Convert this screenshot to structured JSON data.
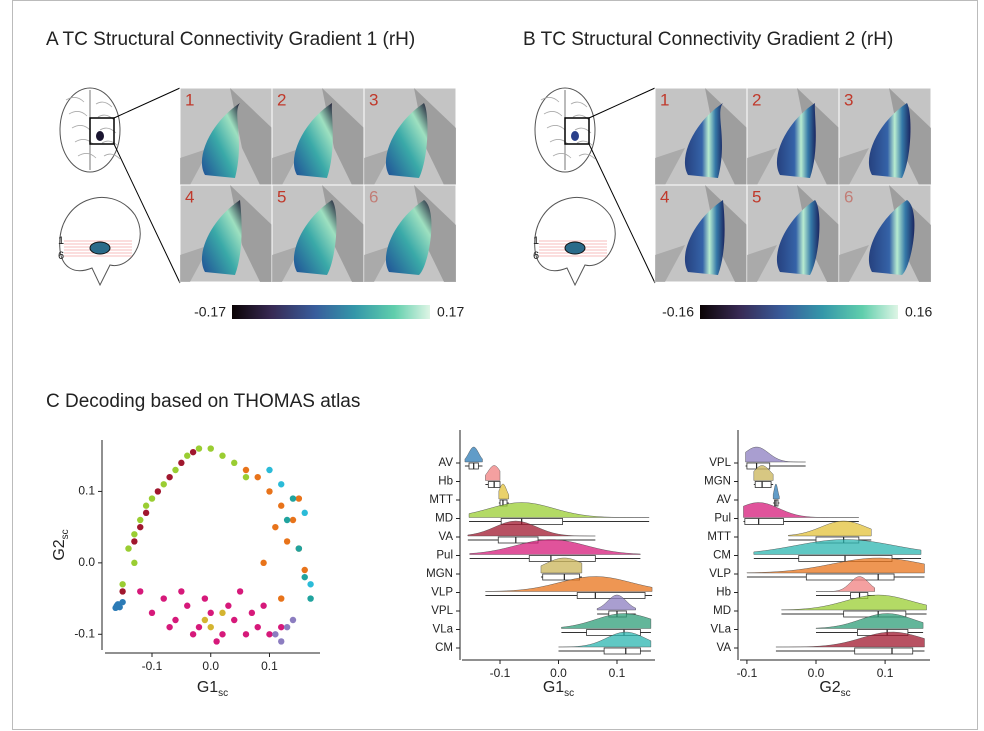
{
  "panel_a": {
    "title": "A TC Structural Connectivity Gradient 1 (rH)",
    "slice_labels": [
      "1",
      "2",
      "3",
      "4",
      "5",
      "6"
    ],
    "sagittal_labels": [
      "1",
      "6"
    ],
    "colorbar_min": -0.17,
    "colorbar_max": 0.17
  },
  "panel_b": {
    "title": "B TC Structural Connectivity Gradient 2 (rH)",
    "slice_labels": [
      "1",
      "2",
      "3",
      "4",
      "5",
      "6"
    ],
    "sagittal_labels": [
      "1",
      "6"
    ],
    "colorbar_min": -0.16,
    "colorbar_max": 0.16
  },
  "panel_c": {
    "title": "C  Decoding based on THOMAS atlas"
  },
  "chart_data": [
    {
      "type": "scatter",
      "x_label": {
        "main": "G1",
        "sub": "sc"
      },
      "y_label": {
        "main": "G2",
        "sub": "sc"
      },
      "xlim": [
        -0.18,
        0.186
      ],
      "ylim": [
        -0.122,
        0.172
      ],
      "xticks": [
        -0.1,
        {
          "value": 0,
          "label": "0.0"
        },
        0.1
      ],
      "yticks": [
        -0.1,
        {
          "value": 0,
          "label": "0.0"
        },
        0.1
      ],
      "series": [
        {
          "color": "#9acd32",
          "x": [
            -0.14,
            -0.13,
            -0.12,
            -0.1,
            -0.08,
            -0.06,
            -0.04,
            -0.02,
            0,
            0.02,
            -0.15,
            -0.11,
            0.04,
            0.06,
            -0.13
          ],
          "y": [
            0.02,
            0.0,
            0.06,
            0.09,
            0.11,
            0.13,
            0.15,
            0.16,
            0.16,
            0.15,
            -0.03,
            0.08,
            0.14,
            0.12,
            0.04
          ]
        },
        {
          "color": "#e8731a",
          "x": [
            0.08,
            0.1,
            0.12,
            0.14,
            0.15,
            0.16,
            0.13,
            0.11,
            0.09,
            0.06,
            0.12,
            0.15
          ],
          "y": [
            0.12,
            0.1,
            0.08,
            0.06,
            0.02,
            -0.01,
            0.03,
            0.05,
            0.0,
            0.13,
            -0.05,
            0.09
          ]
        },
        {
          "color": "#d6197a",
          "x": [
            -0.1,
            -0.08,
            -0.06,
            -0.04,
            -0.02,
            0,
            0.02,
            0.04,
            0.06,
            0.08,
            -0.05,
            -0.01,
            0.03,
            0.07,
            -0.07,
            0.01,
            0.05,
            0.1,
            -0.03,
            0.09,
            0.12,
            -0.12
          ],
          "y": [
            -0.07,
            -0.05,
            -0.08,
            -0.06,
            -0.09,
            -0.07,
            -0.1,
            -0.08,
            -0.1,
            -0.09,
            -0.04,
            -0.05,
            -0.06,
            -0.07,
            -0.09,
            -0.11,
            -0.04,
            -0.1,
            -0.1,
            -0.06,
            -0.09,
            -0.04
          ]
        },
        {
          "color": "#a0172e",
          "x": [
            -0.13,
            -0.11,
            -0.09,
            -0.07,
            -0.05,
            -0.12,
            -0.15,
            -0.03
          ],
          "y": [
            0.03,
            0.07,
            0.1,
            0.12,
            0.14,
            0.05,
            -0.04,
            0.155
          ]
        },
        {
          "color": "#20a39e",
          "x": [
            0.13,
            0.15,
            0.16,
            0.17,
            0.14
          ],
          "y": [
            0.06,
            0.02,
            -0.02,
            -0.05,
            0.09
          ]
        },
        {
          "color": "#2bbbd8",
          "x": [
            0.1,
            0.12,
            0.16,
            0.17
          ],
          "y": [
            0.13,
            0.11,
            0.07,
            -0.03
          ]
        },
        {
          "color": "#2c7bb6",
          "x": [
            -0.16,
            -0.158,
            -0.155,
            -0.15,
            -0.162
          ],
          "y": [
            -0.06,
            -0.058,
            -0.062,
            -0.055,
            -0.063
          ]
        },
        {
          "color": "#8c7dc0",
          "x": [
            0.11,
            0.12,
            0.13,
            0.14
          ],
          "y": [
            -0.1,
            -0.11,
            -0.09,
            -0.08
          ]
        },
        {
          "color": "#d4b430",
          "x": [
            -0.01,
            0.0,
            0.02
          ],
          "y": [
            -0.08,
            -0.09,
            -0.07
          ]
        }
      ]
    },
    {
      "type": "box",
      "x_label": {
        "main": "G1",
        "sub": "sc"
      },
      "xlim": [
        -0.165,
        0.165
      ],
      "xticks": [
        -0.1,
        {
          "value": 0,
          "label": "0.0"
        },
        0.1
      ],
      "categories": [
        "AV",
        "Hb",
        "MTT",
        "MD",
        "VA",
        "Pul",
        "MGN",
        "VLP",
        "VPL",
        "VLa",
        "CM"
      ],
      "colors": [
        "#2c7bb6",
        "#f08080",
        "#e3c23a",
        "#9acd32",
        "#a0172e",
        "#d6197a",
        "#c9b458",
        "#e8731a",
        "#8c7dc0",
        "#2e9e78",
        "#2bb5b0"
      ],
      "min": [
        -0.16,
        -0.125,
        -0.102,
        -0.153,
        -0.155,
        -0.152,
        -0.03,
        -0.125,
        0.066,
        0.005,
        0.0
      ],
      "q1": [
        -0.153,
        -0.12,
        -0.1,
        -0.098,
        -0.103,
        -0.05,
        -0.027,
        0.032,
        0.086,
        0.048,
        0.078
      ],
      "median": [
        -0.145,
        -0.11,
        -0.095,
        -0.063,
        -0.073,
        -0.013,
        0.01,
        0.063,
        0.1,
        0.112,
        0.115
      ],
      "q3": [
        -0.137,
        -0.1,
        -0.088,
        0.007,
        -0.035,
        0.063,
        0.036,
        0.148,
        0.116,
        0.14,
        0.14
      ],
      "max": [
        -0.13,
        -0.1,
        -0.085,
        0.155,
        0.063,
        0.14,
        0.04,
        0.16,
        0.132,
        0.158,
        0.158
      ]
    },
    {
      "type": "box",
      "x_label": {
        "main": "G2",
        "sub": "sc"
      },
      "xlim": [
        -0.11,
        0.165
      ],
      "xticks": [
        -0.1,
        {
          "value": 0,
          "label": "0.0"
        },
        0.1
      ],
      "categories": [
        "VPL",
        "MGN",
        "AV",
        "Pul",
        "MTT",
        "CM",
        "VLP",
        "Hb",
        "MD",
        "VLa",
        "VA"
      ],
      "colors": [
        "#8c7dc0",
        "#c9b458",
        "#2c7bb6",
        "#d6197a",
        "#e3c23a",
        "#2bb5b0",
        "#e8731a",
        "#f08080",
        "#9acd32",
        "#2e9e78",
        "#a0172e"
      ],
      "min": [
        -0.102,
        -0.09,
        -0.062,
        -0.105,
        -0.04,
        -0.09,
        -0.1,
        0.0,
        -0.05,
        0.0,
        -0.058
      ],
      "q1": [
        -0.1,
        -0.088,
        -0.06,
        -0.103,
        0.0,
        -0.025,
        -0.014,
        0.05,
        0.04,
        0.06,
        0.056
      ],
      "median": [
        -0.086,
        -0.078,
        -0.058,
        -0.083,
        0.04,
        0.042,
        0.09,
        0.063,
        0.09,
        0.103,
        0.11
      ],
      "q3": [
        -0.067,
        -0.065,
        -0.055,
        -0.047,
        0.062,
        0.11,
        0.113,
        0.075,
        0.13,
        0.133,
        0.14
      ],
      "max": [
        -0.015,
        -0.062,
        -0.053,
        0.062,
        0.08,
        0.152,
        0.157,
        0.085,
        0.16,
        0.155,
        0.157
      ]
    }
  ]
}
